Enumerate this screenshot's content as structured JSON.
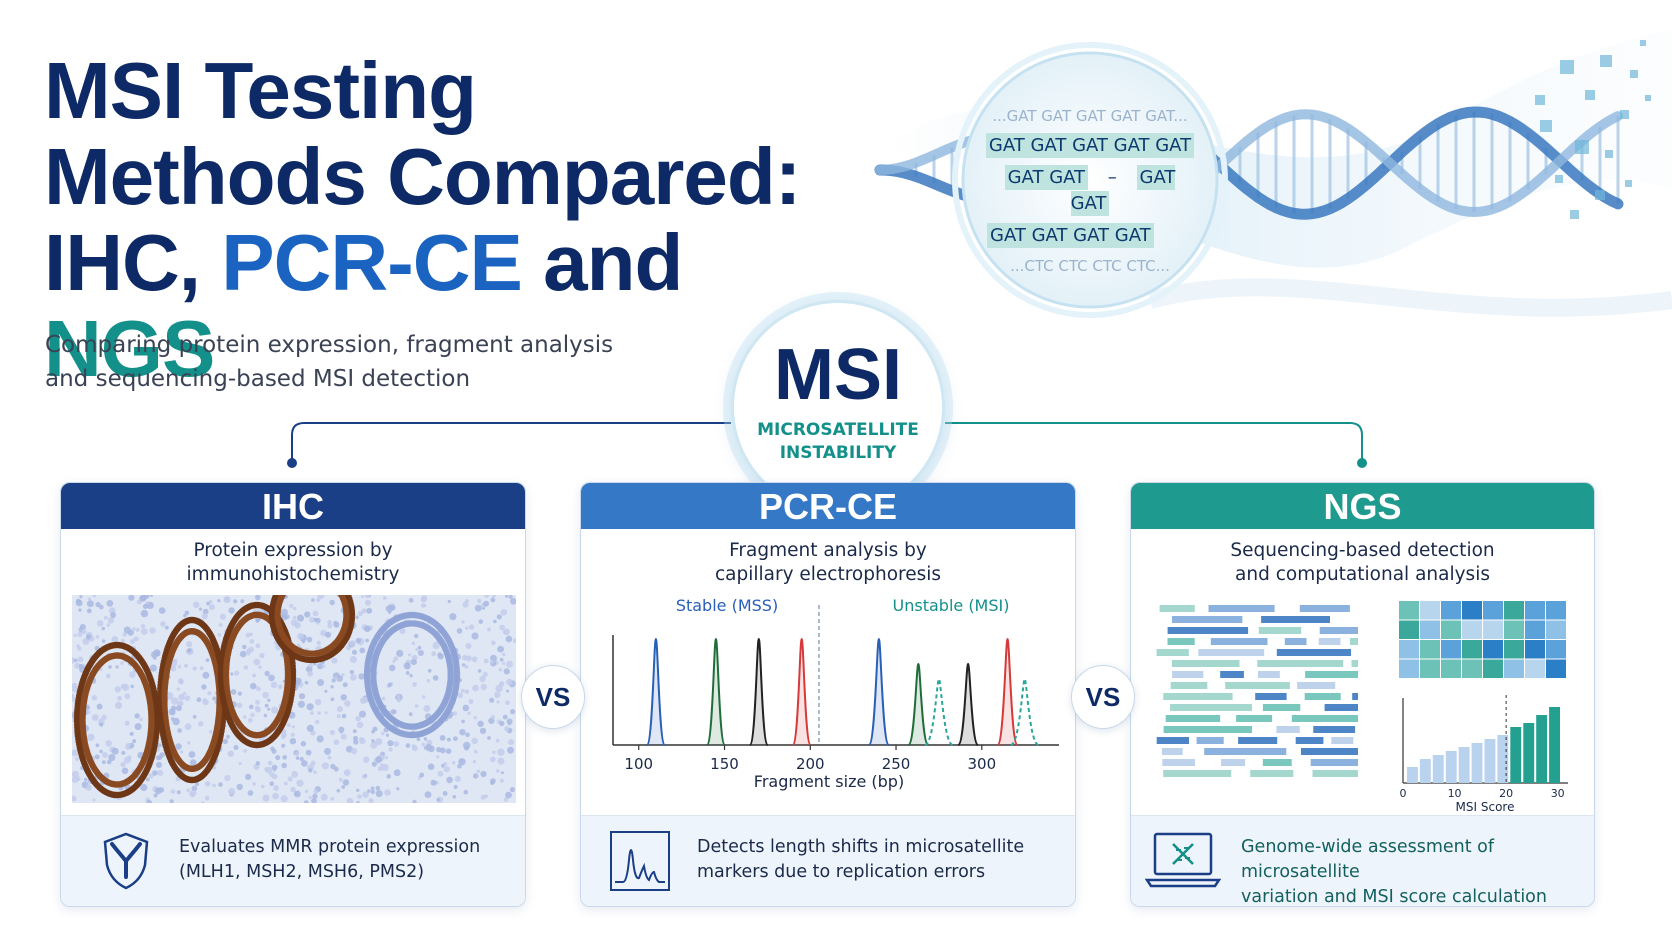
{
  "title": {
    "line1": "MSI Testing",
    "line2": "Methods Compared:",
    "line3_part1": "IHC, ",
    "line3_part2": "PCR-CE",
    "line3_part3": " and ",
    "line3_part4": "NGS"
  },
  "subtitle": {
    "line1": "Comparing protein expression, fragment analysis",
    "line2": "and sequencing-based MSI detection"
  },
  "hub": {
    "abbr": "MSI",
    "line1": "MICROSATELLITE",
    "line2": "INSTABILITY"
  },
  "dna_lens": {
    "top": "...GAT GAT GAT GAT GAT...",
    "row1": "GAT GAT GAT GAT GAT",
    "row2_left": "GAT GAT",
    "row2_mid": "–",
    "row2_right": "GAT GAT",
    "row3": "GAT GAT GAT GAT",
    "bottom": "...CTC CTC CTC CTC..."
  },
  "panels": {
    "ihc": {
      "header": "IHC",
      "desc1": "Protein expression by",
      "desc2": "immunohistochemistry",
      "foot1": "Evaluates MMR protein expression",
      "foot2": "(MLH1, MSH2, MSH6, PMS2)",
      "foot_icon": "antibody-shield-icon"
    },
    "pcr": {
      "header": "PCR-CE",
      "desc1": "Fragment analysis by",
      "desc2": "capillary electrophoresis",
      "foot1": "Detects length shifts in microsatellite",
      "foot2": "markers due to replication errors",
      "foot_icon": "electropherogram-icon"
    },
    "ngs": {
      "header": "NGS",
      "desc1": "Sequencing-based detection",
      "desc2": "and computational analysis",
      "foot1": "Genome-wide assessment of microsatellite",
      "foot2": "variation and MSI score calculation",
      "foot_icon": "laptop-dna-icon"
    }
  },
  "vs_label": "VS",
  "electropherogram": {
    "stable_label": "Stable (MSS)",
    "unstable_label": "Unstable (MSI)",
    "xlabel": "Fragment size (bp)",
    "ticks": [
      100,
      150,
      200,
      250,
      300
    ],
    "stable_peaks": [
      {
        "bp": 110,
        "color": "#2a5fb8"
      },
      {
        "bp": 145,
        "color": "#1f6e3a"
      },
      {
        "bp": 170,
        "color": "#222222"
      },
      {
        "bp": 195,
        "color": "#d63a3a"
      }
    ],
    "unstable_peaks": [
      {
        "bp": 240,
        "color": "#2a5fb8"
      },
      {
        "bp": 263,
        "color": "#1f6e3a"
      },
      {
        "bp": 275,
        "color": "#2aa69a"
      },
      {
        "bp": 292,
        "color": "#222222"
      },
      {
        "bp": 315,
        "color": "#d63a3a"
      },
      {
        "bp": 325,
        "color": "#2aa69a"
      }
    ]
  },
  "msi_score_chart": {
    "xlabel": "MSI Score",
    "ticks": [
      0,
      10,
      20,
      30
    ],
    "threshold": 20,
    "bars": [
      2,
      3,
      3.5,
      4,
      4.5,
      5,
      5.5,
      6,
      7,
      7.5,
      8.5,
      9.5
    ]
  },
  "colors": {
    "ihc": "#1a3f86",
    "pcr": "#3478c6",
    "ngs": "#1f9a8e",
    "navy": "#0d2a66",
    "teal": "#13908a"
  }
}
